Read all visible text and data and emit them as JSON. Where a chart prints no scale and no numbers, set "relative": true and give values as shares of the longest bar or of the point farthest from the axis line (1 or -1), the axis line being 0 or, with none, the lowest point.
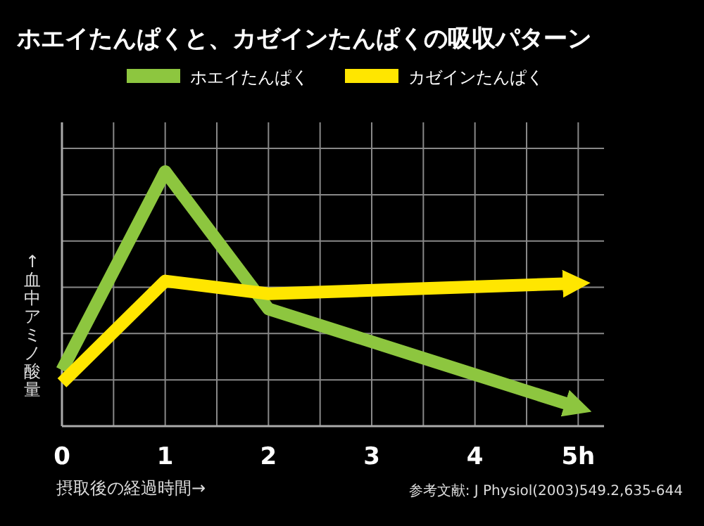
{
  "chart_data": {
    "type": "line",
    "title": "ホエイたんぱくと、カゼインたんぱくの吸収パターン",
    "xlabel": "摂取後の経過時間→",
    "ylabel": "↑血中アミノ酸量",
    "relative": true,
    "legend": "top",
    "grid": true,
    "xlim": [
      0,
      5.25
    ],
    "xticks": [
      0,
      1,
      2,
      3,
      4,
      {
        "value": 5,
        "label": "5h"
      }
    ],
    "series": [
      {
        "name": "ホエイたんぱく",
        "color": "#8dc63f",
        "x": [
          0,
          1,
          2,
          4.95
        ],
        "values": [
          0.22,
          1,
          0.46,
          0.08
        ]
      },
      {
        "name": "カゼインたんぱく",
        "color": "#ffe600",
        "x": [
          0,
          1,
          2,
          4.93
        ],
        "values": [
          0.17,
          0.57,
          0.52,
          0.56
        ]
      }
    ],
    "annotations": [
      "参考文献: J Physiol(2003)549.2,635-644"
    ]
  }
}
